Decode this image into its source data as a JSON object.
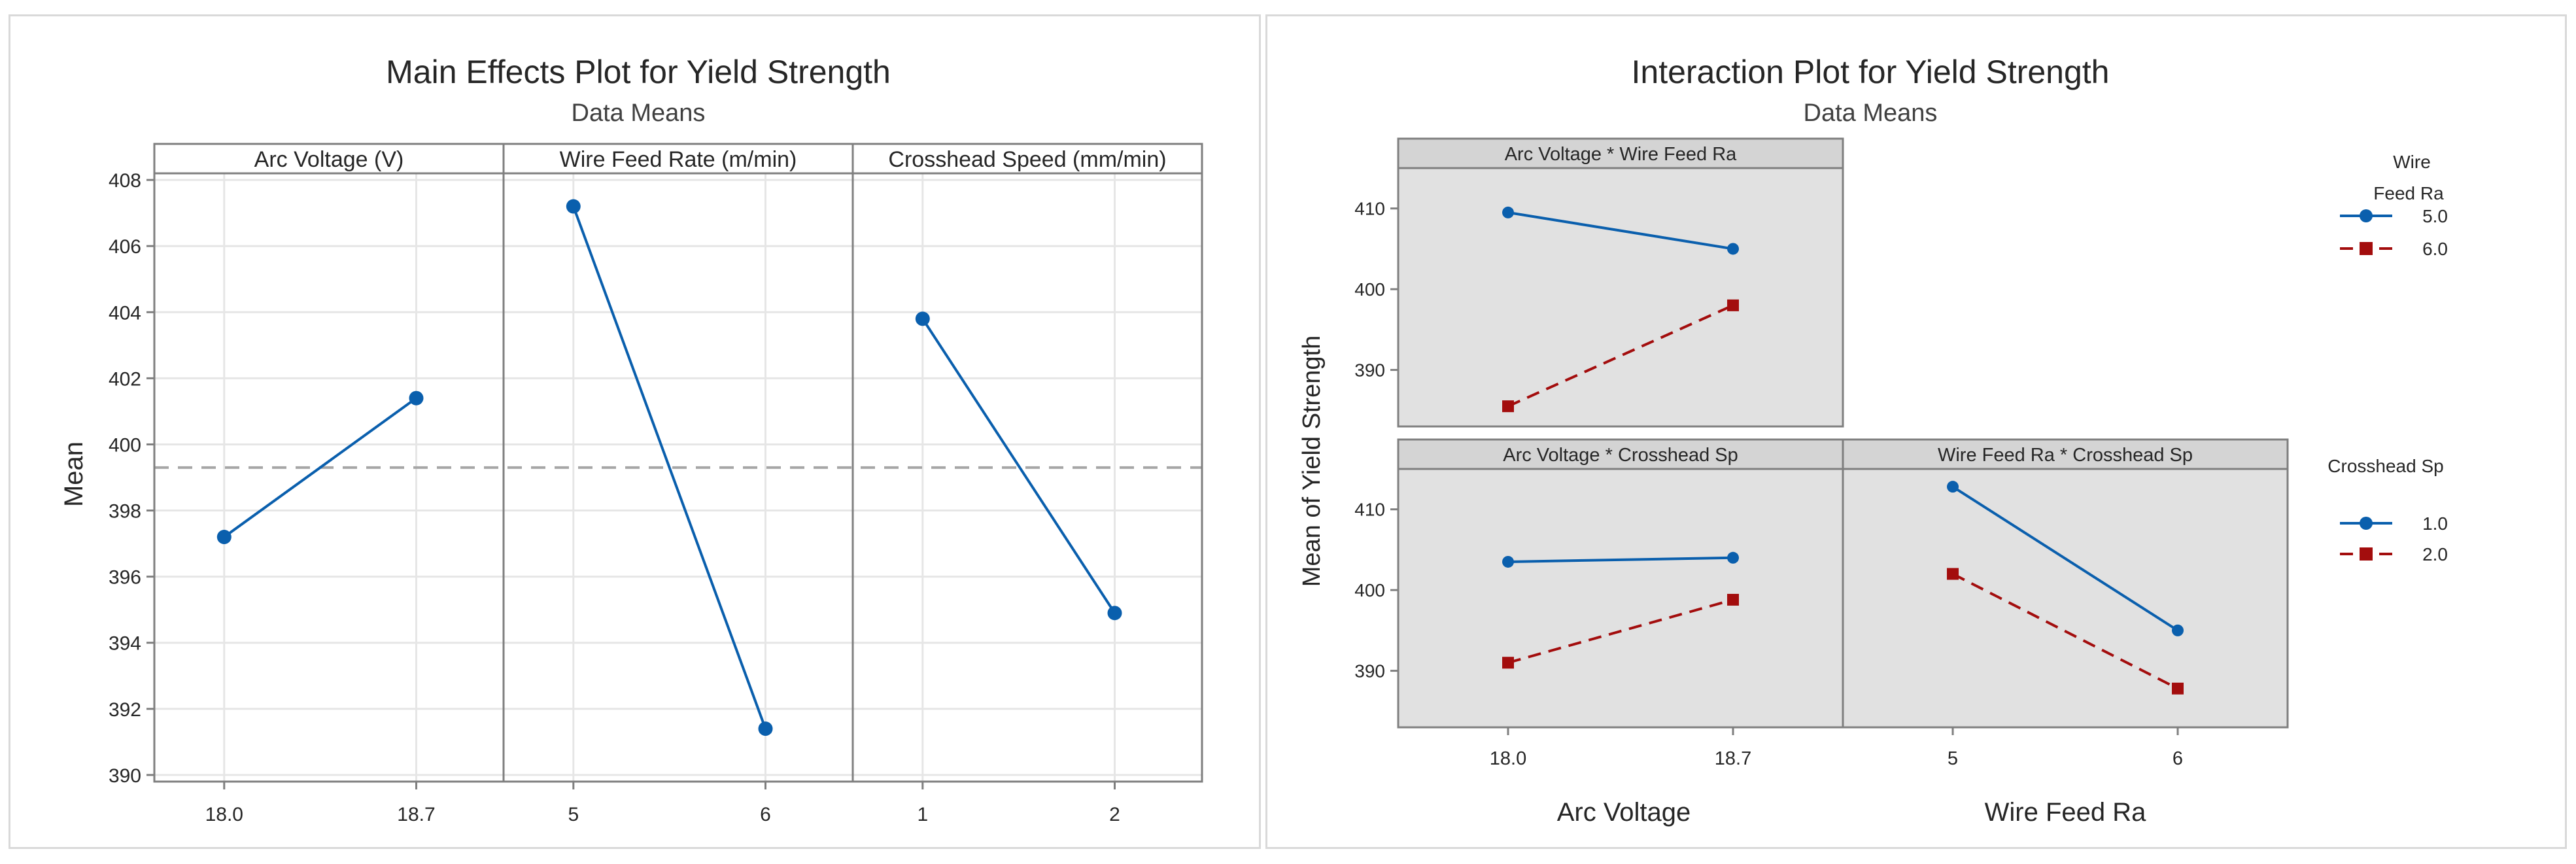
{
  "main_effects": {
    "title": "Main Effects Plot for Yield Strength",
    "subtitle": "Data Means",
    "ylabel": "Mean"
  },
  "interaction": {
    "title": "Interaction Plot for Yield Strength",
    "subtitle": "Data Means",
    "ylabel": "Mean of Yield Strength",
    "xlabel_left": "Arc Voltage",
    "xlabel_right": "Wire Feed Ra",
    "legend1_title_line1": "Wire",
    "legend1_title_line2": "Feed Ra",
    "legend2_title": "Crosshead Sp"
  },
  "colors": {
    "series1": "#0a5fad",
    "series2": "#a30d0d",
    "reference_line": "#a6a6a6",
    "panel_bg": "#e1e1e1",
    "grid": "#e6e6e6",
    "frame": "#7f7f7f"
  },
  "chart_data": [
    {
      "type": "line",
      "name": "main-effects",
      "title": "Main Effects Plot for Yield Strength",
      "subtitle": "Data Means",
      "ylabel": "Mean",
      "ylim": [
        389.8,
        408.2
      ],
      "yticks": [
        390,
        392,
        394,
        396,
        398,
        400,
        402,
        404,
        406,
        408
      ],
      "reference_mean": 399.3,
      "panels": [
        {
          "header": "Arc Voltage (V)",
          "x": [
            "18.0",
            "18.7"
          ],
          "y": [
            397.2,
            401.4
          ]
        },
        {
          "header": "Wire Feed Rate (m/min)",
          "x": [
            "5",
            "6"
          ],
          "y": [
            407.2,
            391.4
          ]
        },
        {
          "header": "Crosshead Speed (mm/min)",
          "x": [
            "1",
            "2"
          ],
          "y": [
            403.8,
            394.9
          ]
        }
      ]
    },
    {
      "type": "line",
      "name": "interaction",
      "title": "Interaction Plot for Yield Strength",
      "subtitle": "Data Means",
      "ylabel": "Mean of Yield Strength",
      "ylim": [
        383,
        415
      ],
      "yticks": [
        390,
        400,
        410
      ],
      "panels": [
        {
          "header": "Arc Voltage * Wire Feed Ra",
          "x": [
            "18.0",
            "18.7"
          ],
          "series": [
            {
              "name": "5.0",
              "values": [
                409.5,
                405.0
              ]
            },
            {
              "name": "6.0",
              "values": [
                385.5,
                398.0
              ]
            }
          ]
        },
        {
          "header": "Arc Voltage * Crosshead Sp",
          "x": [
            "18.0",
            "18.7"
          ],
          "series": [
            {
              "name": "1.0",
              "values": [
                403.5,
                404.0
              ]
            },
            {
              "name": "2.0",
              "values": [
                391.0,
                398.8
              ]
            }
          ]
        },
        {
          "header": "Wire Feed Ra * Crosshead Sp",
          "x": [
            "5",
            "6"
          ],
          "series": [
            {
              "name": "1.0",
              "values": [
                412.8,
                395.0
              ]
            },
            {
              "name": "2.0",
              "values": [
                402.0,
                387.8
              ]
            }
          ]
        }
      ],
      "legends": [
        {
          "series": [
            "5.0",
            "6.0"
          ]
        },
        {
          "series": [
            "1.0",
            "2.0"
          ]
        }
      ]
    }
  ]
}
